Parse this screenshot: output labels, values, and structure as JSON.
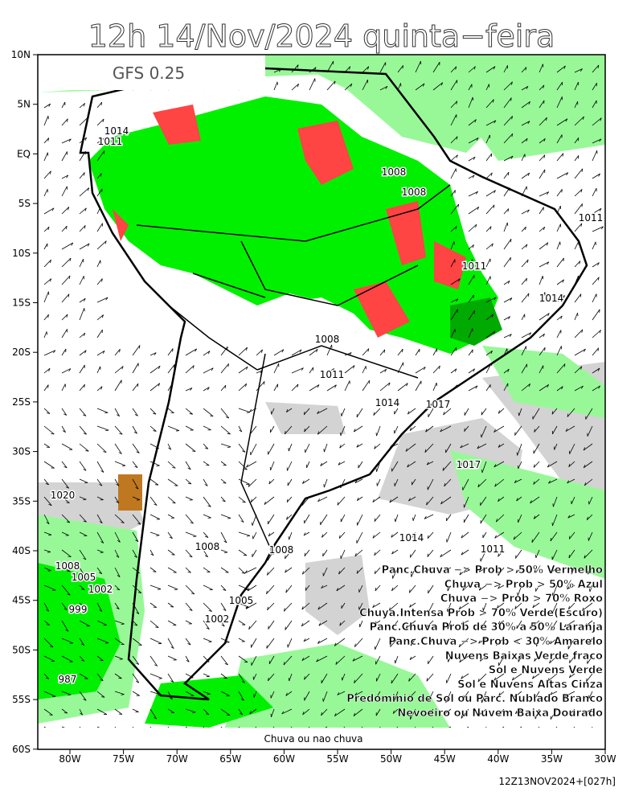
{
  "title": "12h 14/Nov/2024 quinta−feira",
  "model": "GFS 0.25",
  "lat_labels": [
    "10N",
    "5N",
    "EQ",
    "5S",
    "10S",
    "15S",
    "20S",
    "25S",
    "30S",
    "35S",
    "40S",
    "45S",
    "50S",
    "55S",
    "60S"
  ],
  "lon_labels": [
    "80W",
    "75W",
    "70W",
    "65W",
    "60W",
    "55W",
    "50W",
    "45W",
    "40W",
    "35W",
    "30W"
  ],
  "legend": [
    "Panc.Chuva −> Prob > 50% Vermelho",
    "Chuva −> Prob > 50% Azul",
    "Chuva −> Prob > 70% Roxo",
    "Chuya.Intensa Prob > 70% Verde(Escuro)",
    "Panc.Chuva Prob de 30% a 50% Laranja",
    "Panc.Chuva −> Prob < 30% Amarelo",
    "Nuvens Baixas Verde fraco",
    "Sol e Nuvens Verde",
    "Sol e Nuvens Altas Cinza",
    "Predominio de Sol ou Parc. Nublado Branco",
    "Nevoeiro ou Nuvem Baixa Dourado"
  ],
  "footer": "Chuva ou nao chuva",
  "run": "12Z13NOV2024+[027h]",
  "isobars": [
    "1014",
    "1011",
    "1008",
    "1008",
    "1011",
    "1011",
    "1014",
    "1008",
    "1011",
    "1014",
    "1017",
    "1017",
    "1020",
    "1014",
    "1011",
    "1008",
    "1008",
    "1008",
    "1005",
    "1002",
    "999",
    "1005",
    "1002",
    "987"
  ]
}
